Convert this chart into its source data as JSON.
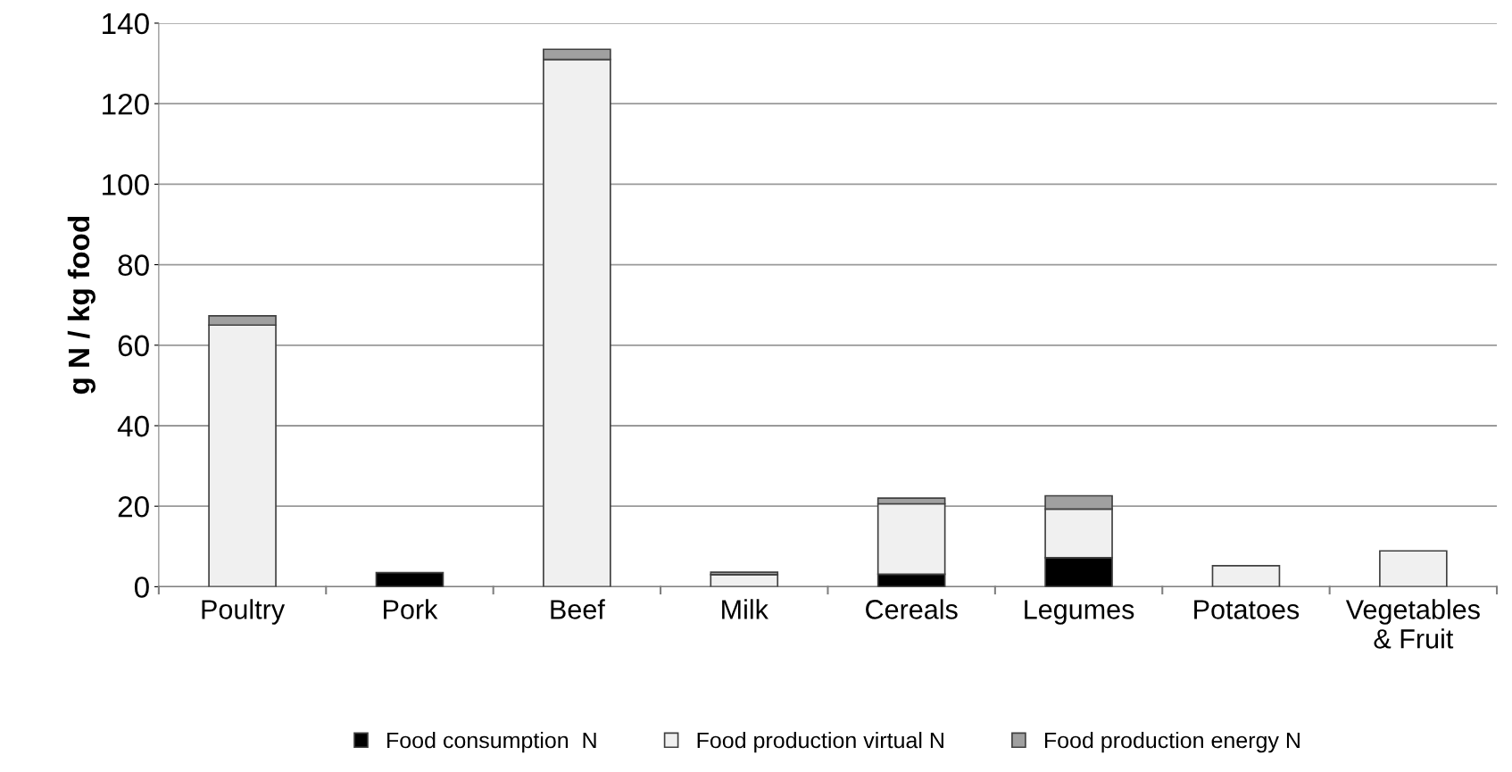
{
  "chart_data": {
    "type": "bar",
    "stacked": true,
    "ylabel": "g N / kg food",
    "categories": [
      "Poultry",
      "Pork",
      "Beef",
      "Milk",
      "Cereals",
      "Legumes",
      "Potatoes",
      "Vegetables\n& Fruit"
    ],
    "series": [
      {
        "name": "Food consumption  N",
        "color": "#000000",
        "values": [
          null,
          3.5,
          null,
          0,
          3.1,
          7.2,
          0,
          0
        ]
      },
      {
        "name": "Food production virtual N",
        "color": "#f0f0f0",
        "values": [
          65,
          null,
          131,
          3,
          17.5,
          12.1,
          5.2,
          8.9
        ]
      },
      {
        "name": "Food production energy N",
        "color": "#a0a0a0",
        "values": [
          2.3,
          null,
          2.5,
          0.6,
          1.4,
          3.3,
          0,
          0
        ]
      }
    ],
    "ylim": [
      0,
      140
    ],
    "yticks": [
      0,
      20,
      40,
      60,
      80,
      100,
      120,
      140
    ],
    "grid": "y",
    "legend": "bottom"
  }
}
